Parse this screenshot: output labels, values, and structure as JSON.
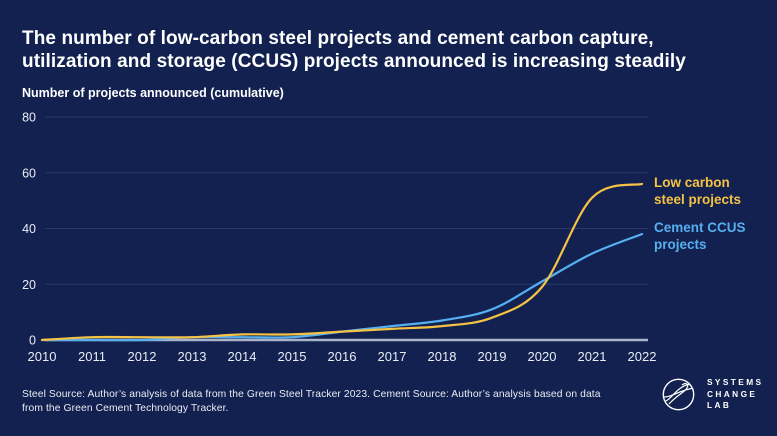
{
  "header": {
    "title_lines": [
      "The number of low-carbon steel projects and cement carbon capture,",
      "utilization and storage (CCUS) projects announced is increasing steadily"
    ],
    "axis_caption": "Number of projects announced (cumulative)"
  },
  "chart_data": {
    "type": "line",
    "title": "The number of low-carbon steel projects and cement carbon capture, utilization and storage (CCUS) projects announced is increasing steadily",
    "ylabel": "Number of projects announced (cumulative)",
    "xlabel": "",
    "x": [
      2010,
      2011,
      2012,
      2013,
      2014,
      2015,
      2016,
      2017,
      2018,
      2019,
      2020,
      2021,
      2022
    ],
    "series": [
      {
        "name": "Low carbon steel projects",
        "label_lines": [
          "Low carbon",
          "steel projects"
        ],
        "color": "#F5C244",
        "values": [
          0,
          1,
          1,
          1,
          2,
          2,
          3,
          4,
          5,
          8,
          19,
          51,
          56
        ]
      },
      {
        "name": "Cement CCUS projects",
        "label_lines": [
          "Cement CCUS",
          "projects"
        ],
        "color": "#56AFF0",
        "values": [
          0,
          0,
          0,
          1,
          1,
          1,
          3,
          5,
          7,
          11,
          21,
          31,
          38
        ]
      }
    ],
    "y_ticks": [
      0,
      20,
      40,
      60,
      80
    ],
    "ylim": [
      0,
      80
    ],
    "xlim": [
      2010,
      2022
    ],
    "grid": true,
    "legend_position": "right of line ends"
  },
  "footer": {
    "source_lines": [
      "Steel Source: Author’s analysis of data from the Green Steel Tracker 2023. Cement Source: Author’s analysis based on data",
      "from the Green Cement Technology Tracker."
    ],
    "logo_lines": [
      "SYSTEMS",
      "CHANGE",
      "LAB"
    ]
  },
  "colors": {
    "background": "#122150",
    "title_text": "#FFFFFF",
    "tick_text": "#E9EDF5",
    "gridline": "#2B3A69",
    "zero_axis": "#A9B3C9",
    "steel_line": "#F5C244",
    "cement_line": "#56AFF0"
  }
}
